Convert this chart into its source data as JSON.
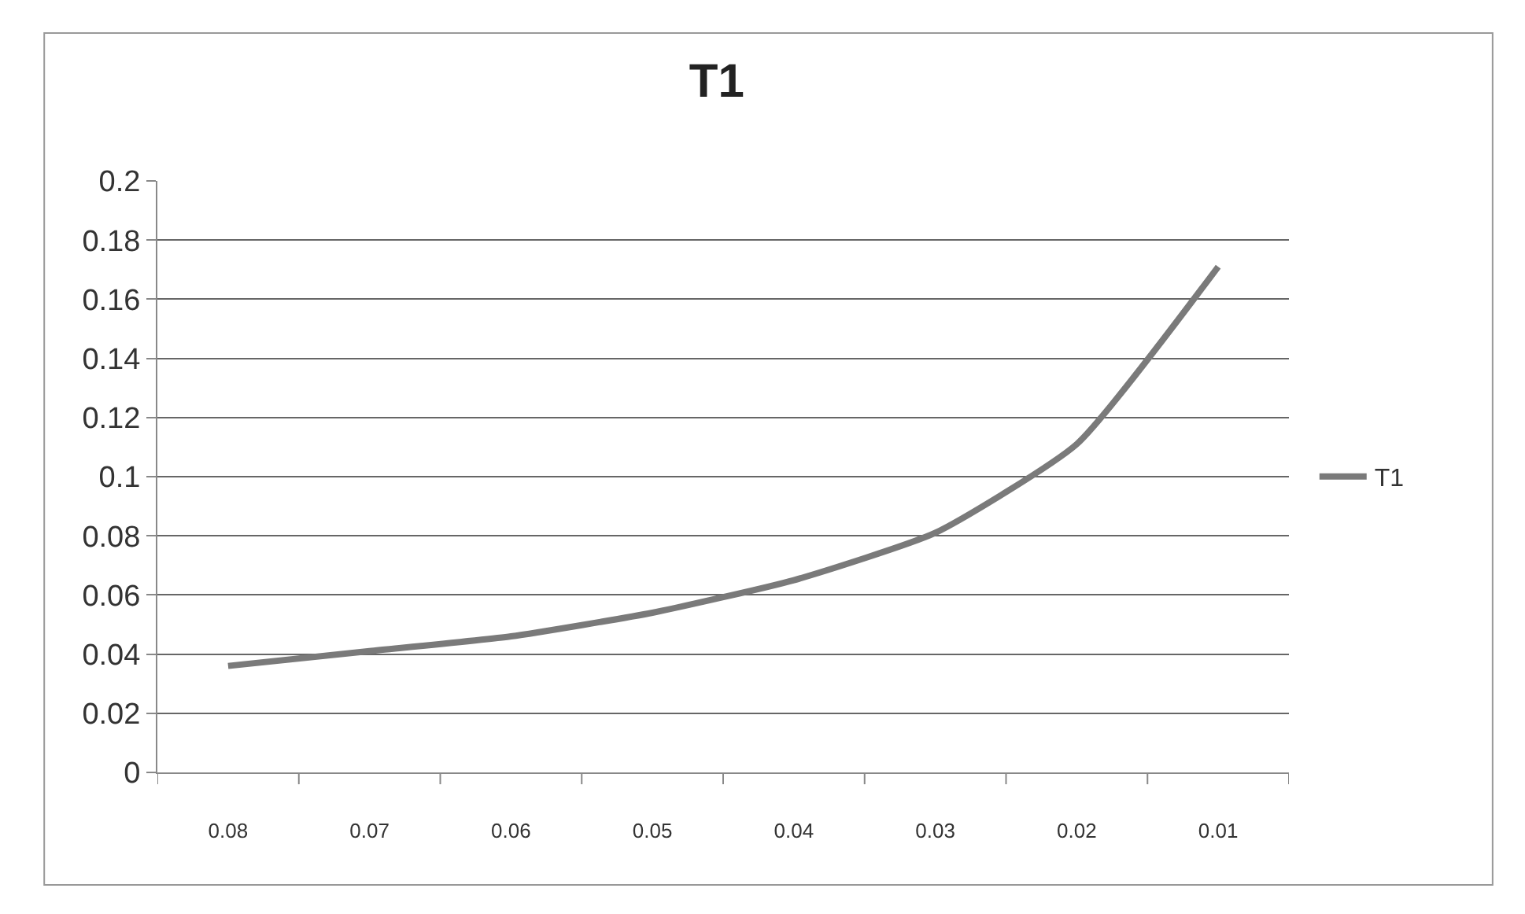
{
  "chart_data": {
    "type": "line",
    "title": "T1",
    "categories": [
      "0.08",
      "0.07",
      "0.06",
      "0.05",
      "0.04",
      "0.03",
      "0.02",
      "0.01"
    ],
    "series": [
      {
        "name": "T1",
        "color": "#7a7a7a",
        "values": [
          0.036,
          0.041,
          0.046,
          0.054,
          0.065,
          0.081,
          0.111,
          0.171
        ]
      }
    ],
    "ylim": [
      0,
      0.2
    ],
    "yticks": [
      0,
      0.02,
      0.04,
      0.06,
      0.08,
      0.1,
      0.12,
      0.14,
      0.16,
      0.18,
      0.2
    ],
    "grid": "y",
    "legend": "right",
    "marker": "none",
    "line_style": "solid"
  }
}
